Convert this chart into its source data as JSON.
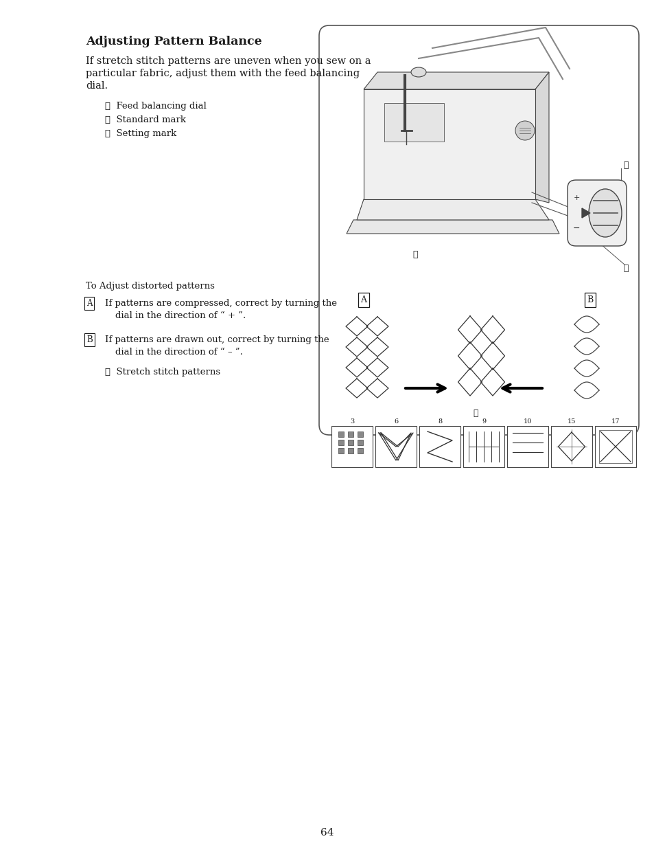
{
  "background_color": "#ffffff",
  "page_number": "64",
  "title": "Adjusting Pattern Balance",
  "body_text_line1": "If stretch stitch patterns are uneven when you sew on a",
  "body_text_line2": "particular fabric, adjust them with the feed balancing",
  "body_text_line3": "dial.",
  "list_items": [
    "①  Feed balancing dial",
    "②  Standard mark",
    "③  Setting mark"
  ],
  "section2_title": "To Adjust distorted patterns",
  "section2_A_line1": "If patterns are compressed, correct by turning the",
  "section2_A_line2": "dial in the direction of “ + ”.",
  "section2_B_line1": "If patterns are drawn out, correct by turning the",
  "section2_B_line2": "dial in the direction of “ – ”.",
  "section2_list": "④  Stretch stitch patterns",
  "stitch_numbers": [
    "3",
    "6",
    "8",
    "9",
    "10",
    "15",
    "17"
  ],
  "text_color": "#1a1a1a",
  "box_edge_color": "#555555"
}
